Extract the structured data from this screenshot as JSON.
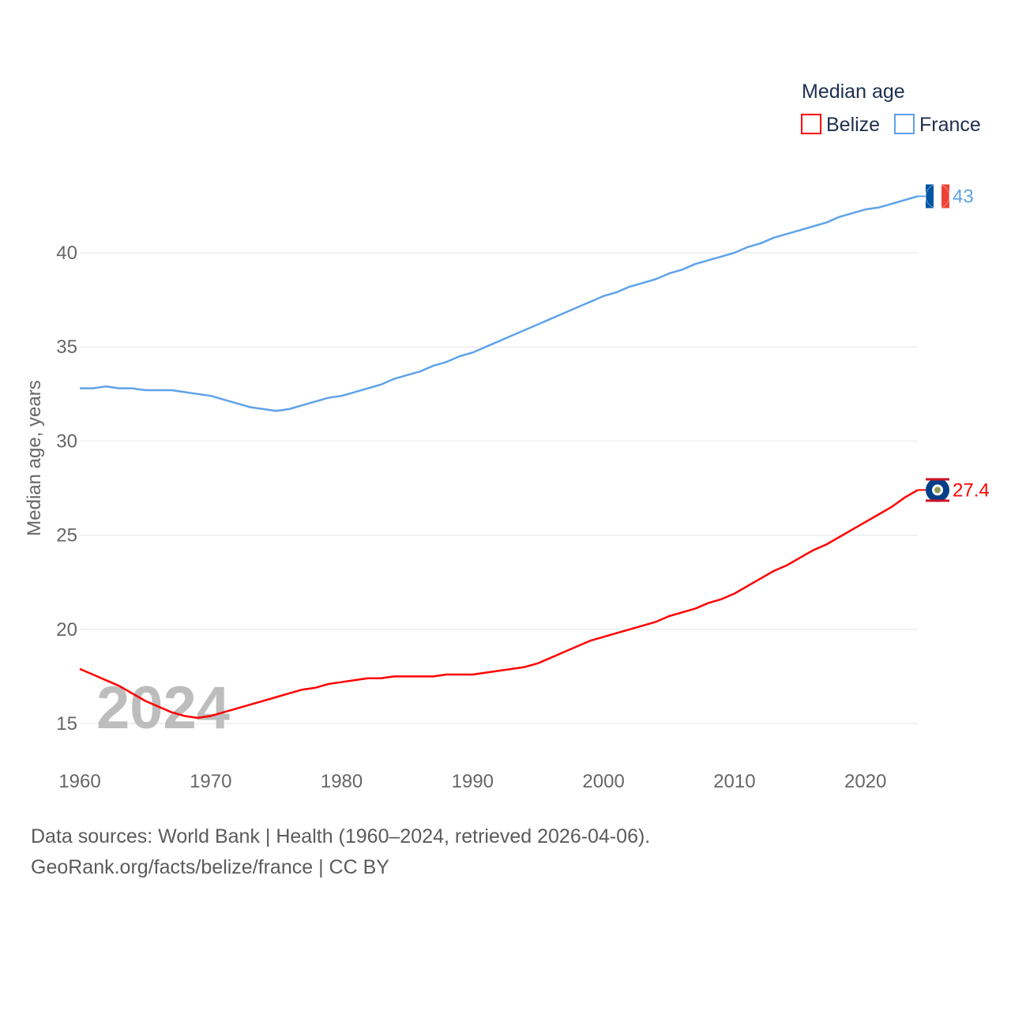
{
  "chart_data": {
    "type": "line",
    "title": "",
    "xlabel": "",
    "ylabel": "Median age, years",
    "xlim": [
      1960,
      2024
    ],
    "ylim": [
      15,
      43
    ],
    "yticks": [
      15,
      20,
      25,
      30,
      35,
      40
    ],
    "xticks": [
      1960,
      1970,
      1980,
      1990,
      2000,
      2010,
      2020
    ],
    "grid": true,
    "legend_title": "Median age",
    "legend_position": "top-right",
    "year_watermark": "2024",
    "x": [
      1960,
      1961,
      1962,
      1963,
      1964,
      1965,
      1966,
      1967,
      1968,
      1969,
      1970,
      1971,
      1972,
      1973,
      1974,
      1975,
      1976,
      1977,
      1978,
      1979,
      1980,
      1981,
      1982,
      1983,
      1984,
      1985,
      1986,
      1987,
      1988,
      1989,
      1990,
      1991,
      1992,
      1993,
      1994,
      1995,
      1996,
      1997,
      1998,
      1999,
      2000,
      2001,
      2002,
      2003,
      2004,
      2005,
      2006,
      2007,
      2008,
      2009,
      2010,
      2011,
      2012,
      2013,
      2014,
      2015,
      2016,
      2017,
      2018,
      2019,
      2020,
      2021,
      2022,
      2023,
      2024
    ],
    "series": [
      {
        "name": "Belize",
        "color": "#ff0000",
        "end_label": "27.4",
        "values": [
          17.9,
          17.6,
          17.3,
          17.0,
          16.6,
          16.2,
          15.9,
          15.6,
          15.4,
          15.3,
          15.4,
          15.6,
          15.8,
          16.0,
          16.2,
          16.4,
          16.6,
          16.8,
          16.9,
          17.1,
          17.2,
          17.3,
          17.4,
          17.4,
          17.5,
          17.5,
          17.5,
          17.5,
          17.6,
          17.6,
          17.6,
          17.7,
          17.8,
          17.9,
          18.0,
          18.2,
          18.5,
          18.8,
          19.1,
          19.4,
          19.6,
          19.8,
          20.0,
          20.2,
          20.4,
          20.7,
          20.9,
          21.1,
          21.4,
          21.6,
          21.9,
          22.3,
          22.7,
          23.1,
          23.4,
          23.8,
          24.2,
          24.5,
          24.9,
          25.3,
          25.7,
          26.1,
          26.5,
          27.0,
          27.4
        ]
      },
      {
        "name": "France",
        "color": "#5ea3ea",
        "end_label": "43",
        "values": [
          32.8,
          32.8,
          32.9,
          32.8,
          32.8,
          32.7,
          32.7,
          32.7,
          32.6,
          32.5,
          32.4,
          32.2,
          32.0,
          31.8,
          31.7,
          31.6,
          31.7,
          31.9,
          32.1,
          32.3,
          32.4,
          32.6,
          32.8,
          33.0,
          33.3,
          33.5,
          33.7,
          34.0,
          34.2,
          34.5,
          34.7,
          35.0,
          35.3,
          35.6,
          35.9,
          36.2,
          36.5,
          36.8,
          37.1,
          37.4,
          37.7,
          37.9,
          38.2,
          38.4,
          38.6,
          38.9,
          39.1,
          39.4,
          39.6,
          39.8,
          40.0,
          40.3,
          40.5,
          40.8,
          41.0,
          41.2,
          41.4,
          41.6,
          41.9,
          42.1,
          42.3,
          42.4,
          42.6,
          42.8,
          43.0
        ]
      }
    ]
  },
  "footer": {
    "line1": "Data sources: World Bank | Health (1960–2024, retrieved 2026-04-06).",
    "line2": "GeoRank.org/facts/belize/france | CC BY"
  }
}
